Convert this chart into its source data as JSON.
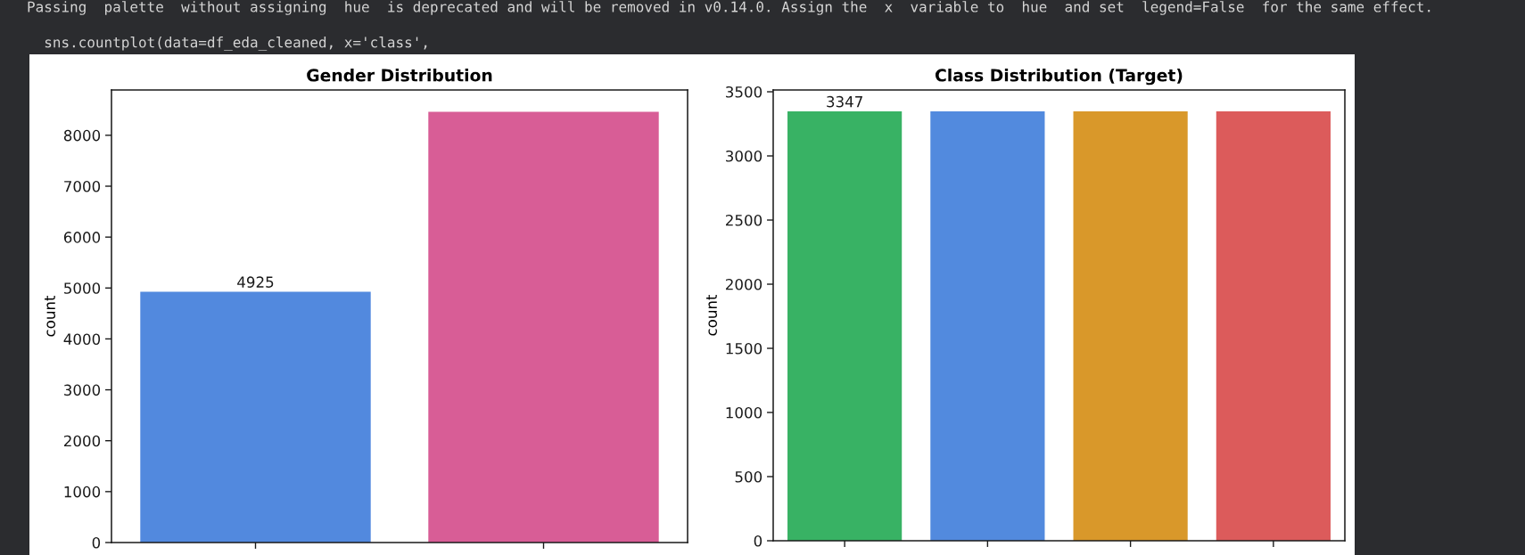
{
  "chart_data": [
    {
      "type": "bar",
      "title": "Gender Distribution",
      "ylabel": "count",
      "categories": [
        null,
        null
      ],
      "values": [
        4925,
        8460
      ],
      "colors": [
        "#5289de",
        "#d85d96"
      ],
      "value_labels": [
        "4925",
        null
      ],
      "ylim": [
        0,
        8890
      ],
      "yticks": [
        0,
        1000,
        2000,
        3000,
        4000,
        5000,
        6000,
        7000,
        8000
      ],
      "tick_labels": "y",
      "annotations": [
        "Passing  palette  without assigning  hue  is deprecated and will be removed in v0.14.0. Assign the  x  variable to  hue  and set  legend=False  for the same effect.",
        "  sns.countplot(data=df_eda_cleaned, x='class',"
      ]
    },
    {
      "type": "bar",
      "title": "Class Distribution (Target)",
      "ylabel": "count",
      "categories": [
        null,
        null,
        null,
        null
      ],
      "values": [
        3347,
        3347,
        3347,
        3347
      ],
      "colors": [
        "#38b264",
        "#528ade",
        "#d9982a",
        "#dc5b5b"
      ],
      "value_labels": [
        "3347",
        null,
        null,
        null
      ],
      "ylim": [
        0,
        3514
      ],
      "yticks": [
        0,
        500,
        1000,
        1500,
        2000,
        2500,
        3000,
        3500
      ],
      "tick_labels": "y"
    }
  ]
}
